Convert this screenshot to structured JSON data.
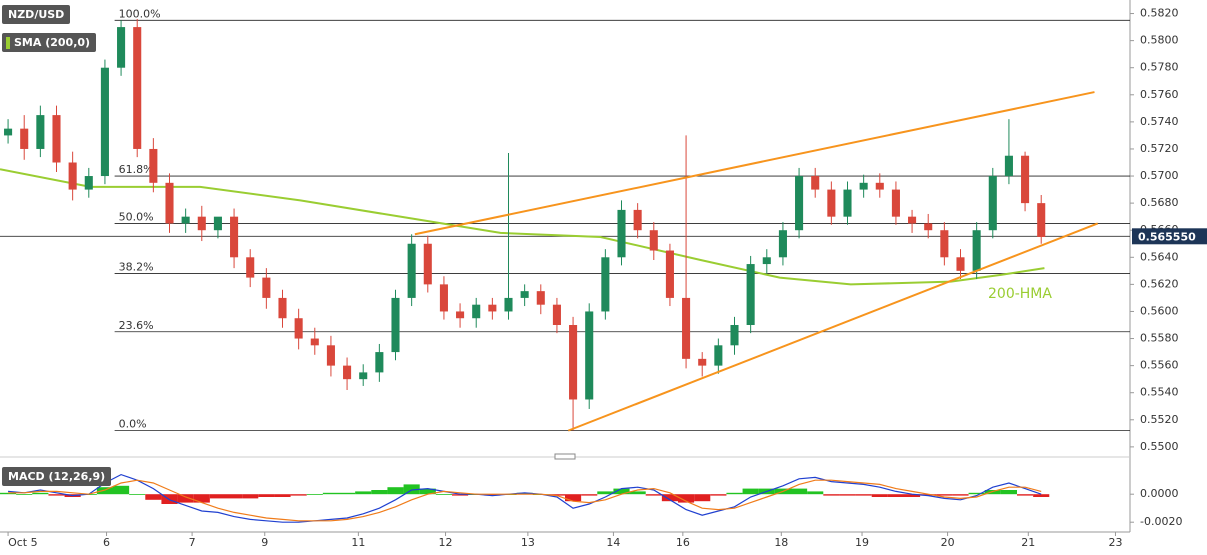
{
  "chart_data": {
    "type": "candlestick",
    "title": "NZD/USD",
    "up_color": "#1f8a5b",
    "down_color": "#d9473b",
    "xlim": [
      -0.5,
      69.5
    ],
    "xticks": [
      {
        "value": 0,
        "label": "Oct 5"
      },
      {
        "value": 6.1,
        "label": "6"
      },
      {
        "value": 11.4,
        "label": "7"
      },
      {
        "value": 15.9,
        "label": "9"
      },
      {
        "value": 21.7,
        "label": "11"
      },
      {
        "value": 27.1,
        "label": "12"
      },
      {
        "value": 32.2,
        "label": "13"
      },
      {
        "value": 37.5,
        "label": "14"
      },
      {
        "value": 41.8,
        "label": "16"
      },
      {
        "value": 47.9,
        "label": "18"
      },
      {
        "value": 52.9,
        "label": "19"
      },
      {
        "value": 58.2,
        "label": "20"
      },
      {
        "value": 63.2,
        "label": "21"
      },
      {
        "value": 68.6,
        "label": "23"
      }
    ],
    "ylim": [
      0.5494,
      0.583
    ],
    "yticks": [
      {
        "value": 0.55,
        "label": "0.5500"
      },
      {
        "value": 0.552,
        "label": "0.5520"
      },
      {
        "value": 0.554,
        "label": "0.5540"
      },
      {
        "value": 0.556,
        "label": "0.5560"
      },
      {
        "value": 0.558,
        "label": "0.5580"
      },
      {
        "value": 0.56,
        "label": "0.5600"
      },
      {
        "value": 0.562,
        "label": "0.5620"
      },
      {
        "value": 0.564,
        "label": "0.5640"
      },
      {
        "value": 0.566,
        "label": "0.5660"
      },
      {
        "value": 0.568,
        "label": "0.5680"
      },
      {
        "value": 0.57,
        "label": "0.5700"
      },
      {
        "value": 0.572,
        "label": "0.5720"
      },
      {
        "value": 0.574,
        "label": "0.5740"
      },
      {
        "value": 0.576,
        "label": "0.5760"
      },
      {
        "value": 0.578,
        "label": "0.5780"
      },
      {
        "value": 0.58,
        "label": "0.5800"
      },
      {
        "value": 0.582,
        "label": "0.5820"
      }
    ],
    "x": [
      0,
      1,
      2,
      3,
      4,
      5,
      6,
      7,
      8,
      9,
      10,
      11,
      12,
      13,
      14,
      15,
      16,
      17,
      18,
      19,
      20,
      21,
      22,
      23,
      24,
      25,
      26,
      27,
      28,
      29,
      30,
      31,
      32,
      33,
      34,
      35,
      36,
      37,
      38,
      39,
      40,
      41,
      42,
      43,
      44,
      45,
      46,
      47,
      48,
      49,
      50,
      51,
      52,
      53,
      54,
      55,
      56,
      57,
      58,
      59,
      60,
      61,
      62,
      63,
      64
    ],
    "open": [
      0.573,
      0.5735,
      0.572,
      0.5745,
      0.571,
      0.569,
      0.57,
      0.578,
      0.581,
      0.572,
      0.5695,
      0.5665,
      0.567,
      0.566,
      0.567,
      0.564,
      0.5625,
      0.561,
      0.5595,
      0.558,
      0.5575,
      0.556,
      0.555,
      0.5555,
      0.557,
      0.561,
      0.565,
      0.562,
      0.56,
      0.5595,
      0.5605,
      0.56,
      0.561,
      0.5615,
      0.5605,
      0.559,
      0.5535,
      0.56,
      0.564,
      0.5675,
      0.566,
      0.5645,
      0.561,
      0.5565,
      0.556,
      0.5575,
      0.559,
      0.5635,
      0.564,
      0.566,
      0.57,
      0.569,
      0.567,
      0.569,
      0.5695,
      0.569,
      0.567,
      0.5665,
      0.566,
      0.564,
      0.563,
      0.566,
      0.57,
      0.5715,
      0.568
    ],
    "high": [
      0.5742,
      0.5745,
      0.5752,
      0.5752,
      0.5718,
      0.5706,
      0.5786,
      0.5815,
      0.5816,
      0.5728,
      0.5702,
      0.5676,
      0.5678,
      0.5668,
      0.5676,
      0.5646,
      0.5632,
      0.5616,
      0.5602,
      0.5588,
      0.5582,
      0.5566,
      0.5561,
      0.5576,
      0.5616,
      0.5657,
      0.5656,
      0.5626,
      0.5606,
      0.561,
      0.561,
      0.5717,
      0.562,
      0.562,
      0.561,
      0.5596,
      0.5606,
      0.5646,
      0.5682,
      0.568,
      0.5666,
      0.565,
      0.573,
      0.557,
      0.558,
      0.5596,
      0.5641,
      0.5646,
      0.5666,
      0.5706,
      0.5706,
      0.5696,
      0.5696,
      0.5701,
      0.5702,
      0.5696,
      0.5675,
      0.5672,
      0.5666,
      0.5646,
      0.5666,
      0.5706,
      0.5742,
      0.5718,
      0.5686
    ],
    "low": [
      0.5724,
      0.5712,
      0.5714,
      0.5703,
      0.5682,
      0.5684,
      0.5694,
      0.5774,
      0.5714,
      0.5688,
      0.5658,
      0.5658,
      0.5652,
      0.5654,
      0.5632,
      0.5618,
      0.5602,
      0.5588,
      0.5572,
      0.5568,
      0.5552,
      0.5542,
      0.5545,
      0.5548,
      0.5564,
      0.5604,
      0.5614,
      0.5594,
      0.5588,
      0.5588,
      0.5594,
      0.5594,
      0.5604,
      0.5598,
      0.5584,
      0.5512,
      0.5528,
      0.5594,
      0.5634,
      0.5654,
      0.5638,
      0.5604,
      0.5558,
      0.5552,
      0.5554,
      0.5568,
      0.5584,
      0.5628,
      0.5634,
      0.5654,
      0.5684,
      0.5664,
      0.5664,
      0.5684,
      0.5684,
      0.5664,
      0.5658,
      0.5654,
      0.5634,
      0.5624,
      0.5624,
      0.5654,
      0.5694,
      0.5674,
      0.565
    ],
    "close": [
      0.5735,
      0.572,
      0.5745,
      0.571,
      0.569,
      0.57,
      0.578,
      0.581,
      0.572,
      0.5695,
      0.5665,
      0.567,
      0.566,
      0.567,
      0.564,
      0.5625,
      0.561,
      0.5595,
      0.558,
      0.5575,
      0.556,
      0.555,
      0.5555,
      0.557,
      0.561,
      0.565,
      0.562,
      0.56,
      0.5595,
      0.5605,
      0.56,
      0.561,
      0.5615,
      0.5605,
      0.559,
      0.5535,
      0.56,
      0.564,
      0.5675,
      0.566,
      0.5645,
      0.561,
      0.5565,
      0.556,
      0.5575,
      0.559,
      0.5635,
      0.564,
      0.566,
      0.57,
      0.569,
      0.567,
      0.569,
      0.5695,
      0.569,
      0.567,
      0.5665,
      0.566,
      0.564,
      0.563,
      0.566,
      0.57,
      0.5715,
      0.568,
      0.5655
    ],
    "overlay": {
      "name": "SMA (200,0)",
      "label": "200-HMA",
      "color": "#9acd32",
      "x": [
        -0.5,
        5.1,
        11.9,
        18.1,
        24.3,
        30.5,
        36.7,
        42.9,
        47.8,
        52.2,
        58.4,
        61.5,
        64.2
      ],
      "values": [
        0.5705,
        0.5692,
        0.5692,
        0.5682,
        0.567,
        0.5658,
        0.5655,
        0.5638,
        0.5625,
        0.562,
        0.5622,
        0.5627,
        0.5632
      ]
    },
    "trendlines": [
      {
        "color": "#f7941d",
        "x": [
          25.2,
          67.3
        ],
        "values": [
          0.5657,
          0.5762
        ]
      },
      {
        "color": "#f7941d",
        "x": [
          34.7,
          67.5
        ],
        "values": [
          0.5512,
          0.5665
        ]
      }
    ],
    "fib_levels": [
      {
        "label": "100.0%",
        "value": 0.5815
      },
      {
        "label": "61.8%",
        "value": 0.57
      },
      {
        "label": "50.0%",
        "value": 0.5665
      },
      {
        "label": "38.2%",
        "value": 0.5628
      },
      {
        "label": "23.6%",
        "value": 0.5585
      },
      {
        "label": "0.0%",
        "value": 0.5512
      }
    ],
    "fib_start": 6.6,
    "last_price": {
      "value": 0.56555,
      "label": "0.565550",
      "color": "#1d3557"
    },
    "macd": {
      "title": "MACD (12,26,9)",
      "ylim": [
        -0.0027,
        0.0023
      ],
      "yticks": [
        {
          "value": 0,
          "label": "0.0000"
        },
        {
          "value": -0.002,
          "label": "-0.0020"
        }
      ],
      "macd": {
        "color": "#2040d0",
        "values": [
          0.0002,
          0.0001,
          0.0003,
          0.0001,
          -0.0001,
          0,
          0.0008,
          0.0014,
          0.001,
          0.0004,
          -0.0004,
          -0.0008,
          -0.0012,
          -0.0013,
          -0.0016,
          -0.0018,
          -0.0019,
          -0.002,
          -0.002,
          -0.0019,
          -0.0018,
          -0.0017,
          -0.0014,
          -0.001,
          -0.0004,
          0.0003,
          0.0004,
          0.0002,
          0,
          0,
          -0.0001,
          0,
          0.0001,
          0,
          -0.0002,
          -0.001,
          -0.0007,
          -0.0002,
          0.0004,
          0.0005,
          0.0003,
          -0.0004,
          -0.0011,
          -0.0015,
          -0.0012,
          -0.0009,
          -0.0002,
          0.0002,
          0.0006,
          0.0011,
          0.0012,
          0.0009,
          0.0008,
          0.0007,
          0.0005,
          0.0002,
          0,
          -0.0001,
          -0.0003,
          -0.0004,
          -0.0001,
          0.0005,
          0.0008,
          0.0004,
          0
        ]
      },
      "signal": {
        "color": "#f07c1a",
        "values": [
          0.0001,
          0.0001,
          0.0002,
          0.0002,
          0.0001,
          0,
          0.0003,
          0.0008,
          0.001,
          0.0008,
          0.0003,
          -0.0002,
          -0.0006,
          -0.001,
          -0.0013,
          -0.0015,
          -0.0017,
          -0.0018,
          -0.0019,
          -0.0019,
          -0.0019,
          -0.0018,
          -0.0016,
          -0.0013,
          -0.0009,
          -0.0004,
          0,
          0.0002,
          0.0001,
          0,
          0,
          0,
          0,
          0,
          -0.0001,
          -0.0005,
          -0.0006,
          -0.0004,
          0,
          0.0003,
          0.0004,
          0.0001,
          -0.0005,
          -0.001,
          -0.0011,
          -0.001,
          -0.0006,
          -0.0002,
          0.0002,
          0.0007,
          0.001,
          0.001,
          0.0009,
          0.0008,
          0.0007,
          0.0004,
          0.0002,
          0,
          -0.0002,
          -0.0003,
          -0.0002,
          0.0002,
          0.0005,
          0.0005,
          0.0002
        ]
      },
      "histogram": {
        "up_color": "#22c322",
        "down_color": "#e02020",
        "values": [
          0.0001,
          0,
          0.0001,
          -0.0001,
          -0.0002,
          0,
          0.0005,
          0.0006,
          0,
          -0.0004,
          -0.0007,
          -0.0006,
          -0.0006,
          -0.0003,
          -0.0003,
          -0.0003,
          -0.0002,
          -0.0002,
          -0.0001,
          0,
          0.0001,
          0.0001,
          0.0002,
          0.0003,
          0.0005,
          0.0007,
          0.0004,
          0,
          -0.0001,
          0,
          -0.0001,
          0,
          0.0001,
          0,
          -0.0001,
          -0.0005,
          -0.0001,
          0.0002,
          0.0004,
          0.0002,
          -0.0001,
          -0.0005,
          -0.0006,
          -0.0005,
          -0.0001,
          0.0001,
          0.0004,
          0.0004,
          0.0004,
          0.0004,
          0.0002,
          -0.0001,
          -0.0001,
          -0.0001,
          -0.0002,
          -0.0002,
          -0.0002,
          -0.0001,
          -0.0001,
          -0.0001,
          0.0001,
          0.0003,
          0.0003,
          -0.0001,
          -0.0002
        ]
      }
    }
  }
}
